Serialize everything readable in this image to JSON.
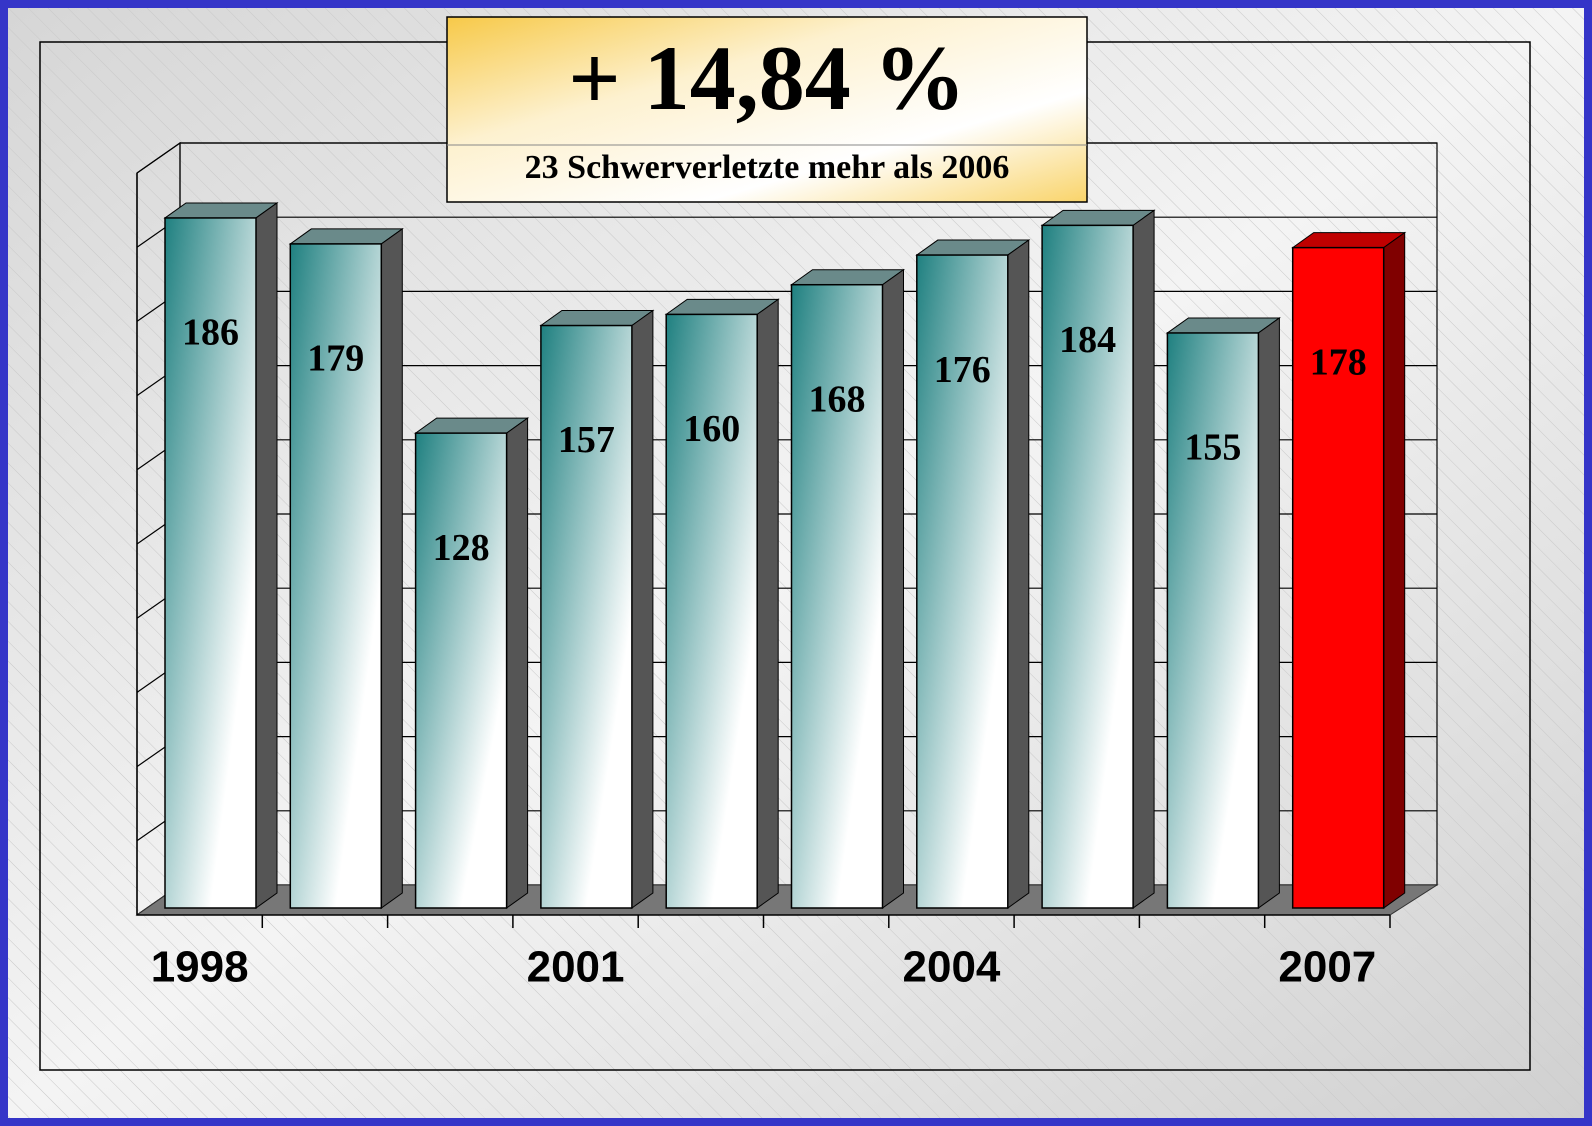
{
  "chart_data": {
    "type": "bar3d",
    "title": "+ 14,84 %",
    "subtitle": "23 Schwerverletzte mehr als 2006",
    "categories": [
      "1998",
      null,
      null,
      "2001",
      null,
      null,
      "2004",
      null,
      null,
      "2007"
    ],
    "values": [
      186,
      179,
      128,
      157,
      160,
      168,
      176,
      184,
      155,
      178
    ],
    "colors": [
      "#1f8080",
      "#1f8080",
      "#1f8080",
      "#1f8080",
      "#1f8080",
      "#1f8080",
      "#1f8080",
      "#1f8080",
      "#1f8080",
      "#ff0000"
    ],
    "ylim": [
      0,
      200
    ],
    "yticks": [
      0,
      20,
      40,
      60,
      80,
      100,
      120,
      140,
      160,
      180,
      200
    ],
    "grid": true
  }
}
